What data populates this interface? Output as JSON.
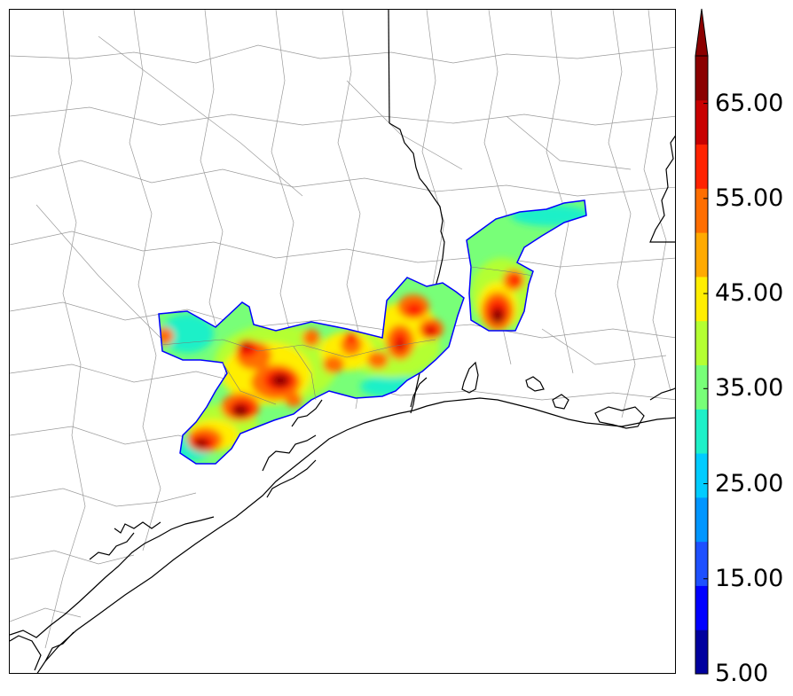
{
  "map": {
    "region": "Southeast Texas / Southwest Louisiana Gulf Coast",
    "field": "precipitation",
    "colors": {
      "land": "#ffffff",
      "water": "#ffffff",
      "county_lines": "#9a9a9a",
      "state_lines": "#000000",
      "coastline": "#000000"
    }
  },
  "colorbar": {
    "min": 5.0,
    "max": 70.0,
    "step": 5.0,
    "extend": "max",
    "levels": [
      5,
      10,
      15,
      20,
      25,
      30,
      35,
      40,
      45,
      50,
      55,
      60,
      65,
      70
    ],
    "colors": [
      "#00009f",
      "#0000ff",
      "#1e50ff",
      "#0096ff",
      "#00ccff",
      "#1ef0c8",
      "#78ff78",
      "#b4ff32",
      "#ffee00",
      "#ffaa00",
      "#ff6e00",
      "#ff2300",
      "#c80000",
      "#8b0000"
    ],
    "tick_labels": [
      "5.00",
      "15.00",
      "25.00",
      "35.00",
      "45.00",
      "55.00",
      "65.00"
    ]
  }
}
